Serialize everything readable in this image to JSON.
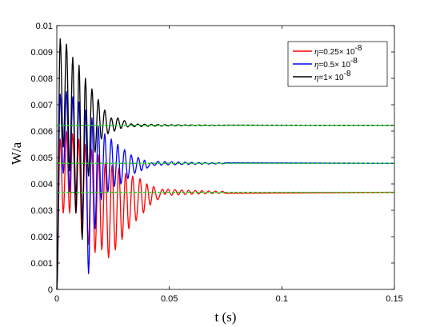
{
  "chart_data": {
    "type": "line",
    "xlabel": "t (s)",
    "ylabel": "W/a",
    "xlim": [
      0,
      0.15
    ],
    "ylim": [
      0,
      0.01
    ],
    "x_ticks": [
      "0",
      "0.05",
      "0.1",
      "0.15"
    ],
    "y_ticks": [
      "0",
      "0.001",
      "0.002",
      "0.003",
      "0.004",
      "0.005",
      "0.006",
      "0.007",
      "0.008",
      "0.009",
      "0.01"
    ],
    "legend_position": "top-right",
    "grid": false,
    "colors": {
      "red": "#ff0000",
      "blue": "#0000ff",
      "black": "#000000",
      "reference": "#22cc22"
    },
    "reference_lines": [
      0.00368,
      0.00478,
      0.00622
    ],
    "series": [
      {
        "name": "η=0.25× 10^-8",
        "legend_prefix": "η",
        "legend_text": "=0.25× 10",
        "legend_exp": "-8",
        "color": "#ff0000",
        "steady_state": 0.00368,
        "peaks": [
          [
            0.0015,
            0.0057
          ],
          [
            0.0043,
            0.006
          ],
          [
            0.007,
            0.0059
          ],
          [
            0.0098,
            0.0057
          ],
          [
            0.0126,
            0.0055
          ],
          [
            0.0155,
            0.0053
          ],
          [
            0.0185,
            0.0051
          ],
          [
            0.0215,
            0.0048
          ],
          [
            0.0245,
            0.0047
          ],
          [
            0.0275,
            0.0046
          ],
          [
            0.0306,
            0.0044
          ],
          [
            0.0337,
            0.0043
          ],
          [
            0.037,
            0.0042
          ],
          [
            0.04,
            0.004
          ],
          [
            0.043,
            0.0039
          ],
          [
            0.047,
            0.0038
          ]
        ],
        "troughs": [
          [
            0.0029,
            0.0029
          ],
          [
            0.0057,
            0.0029
          ],
          [
            0.0085,
            0.0029
          ],
          [
            0.0112,
            0.002
          ],
          [
            0.014,
            0.0017
          ],
          [
            0.017,
            0.0014
          ],
          [
            0.02,
            0.0015
          ],
          [
            0.023,
            0.0012
          ],
          [
            0.026,
            0.0015
          ],
          [
            0.029,
            0.0019
          ],
          [
            0.032,
            0.0023
          ],
          [
            0.0352,
            0.0026
          ],
          [
            0.0385,
            0.0029
          ],
          [
            0.0415,
            0.0032
          ],
          [
            0.0448,
            0.0034
          ],
          [
            0.048,
            0.0036
          ]
        ],
        "tail_amplitude": 0.00012
      },
      {
        "name": "η=0.5× 10^-8",
        "legend_prefix": "η",
        "legend_text": "=0.5× 10",
        "legend_exp": "-8",
        "color": "#0000ff",
        "steady_state": 0.00478,
        "peaks": [
          [
            0.0015,
            0.0074
          ],
          [
            0.0043,
            0.0075
          ],
          [
            0.0071,
            0.0073
          ],
          [
            0.0099,
            0.0071
          ],
          [
            0.0128,
            0.0068
          ],
          [
            0.0156,
            0.0065
          ],
          [
            0.0184,
            0.0062
          ],
          [
            0.0213,
            0.0059
          ],
          [
            0.0242,
            0.0057
          ],
          [
            0.0271,
            0.0055
          ],
          [
            0.0301,
            0.0053
          ],
          [
            0.033,
            0.0051
          ],
          [
            0.0362,
            0.005
          ],
          [
            0.039,
            0.0049
          ],
          [
            0.042,
            0.0048
          ]
        ],
        "troughs": [
          [
            0.0029,
            0.0044
          ],
          [
            0.0057,
            0.0037
          ],
          [
            0.0085,
            0.0036
          ],
          [
            0.0113,
            0.0027
          ],
          [
            0.0141,
            0.0006
          ],
          [
            0.017,
            0.0023
          ],
          [
            0.0198,
            0.0034
          ],
          [
            0.0227,
            0.0037
          ],
          [
            0.0256,
            0.0039
          ],
          [
            0.0285,
            0.004
          ],
          [
            0.0316,
            0.0042
          ],
          [
            0.0346,
            0.0044
          ],
          [
            0.0376,
            0.0045
          ],
          [
            0.04,
            0.0046
          ]
        ],
        "tail_amplitude": 8e-05
      },
      {
        "name": "η=1× 10^-8",
        "legend_prefix": "η",
        "legend_text": "=1× 10",
        "legend_exp": "-8",
        "color": "#000000",
        "steady_state": 0.00622,
        "peaks": [
          [
            0.0015,
            0.0095
          ],
          [
            0.0043,
            0.0093
          ],
          [
            0.0071,
            0.0088
          ],
          [
            0.0099,
            0.0085
          ],
          [
            0.0127,
            0.008
          ],
          [
            0.0156,
            0.0076
          ],
          [
            0.0184,
            0.0072
          ],
          [
            0.0213,
            0.0068
          ],
          [
            0.0242,
            0.0065
          ],
          [
            0.0271,
            0.0065
          ],
          [
            0.03,
            0.0064
          ]
        ],
        "troughs": [
          [
            0.0029,
            0.0054
          ],
          [
            0.0057,
            0.0045
          ],
          [
            0.0085,
            0.0029
          ],
          [
            0.0113,
            0.0019
          ],
          [
            0.0141,
            0.0043
          ],
          [
            0.017,
            0.0052
          ],
          [
            0.0198,
            0.0057
          ],
          [
            0.0227,
            0.0059
          ],
          [
            0.0256,
            0.006
          ],
          [
            0.0285,
            0.0061
          ]
        ],
        "tail_amplitude": 6e-05
      }
    ]
  }
}
